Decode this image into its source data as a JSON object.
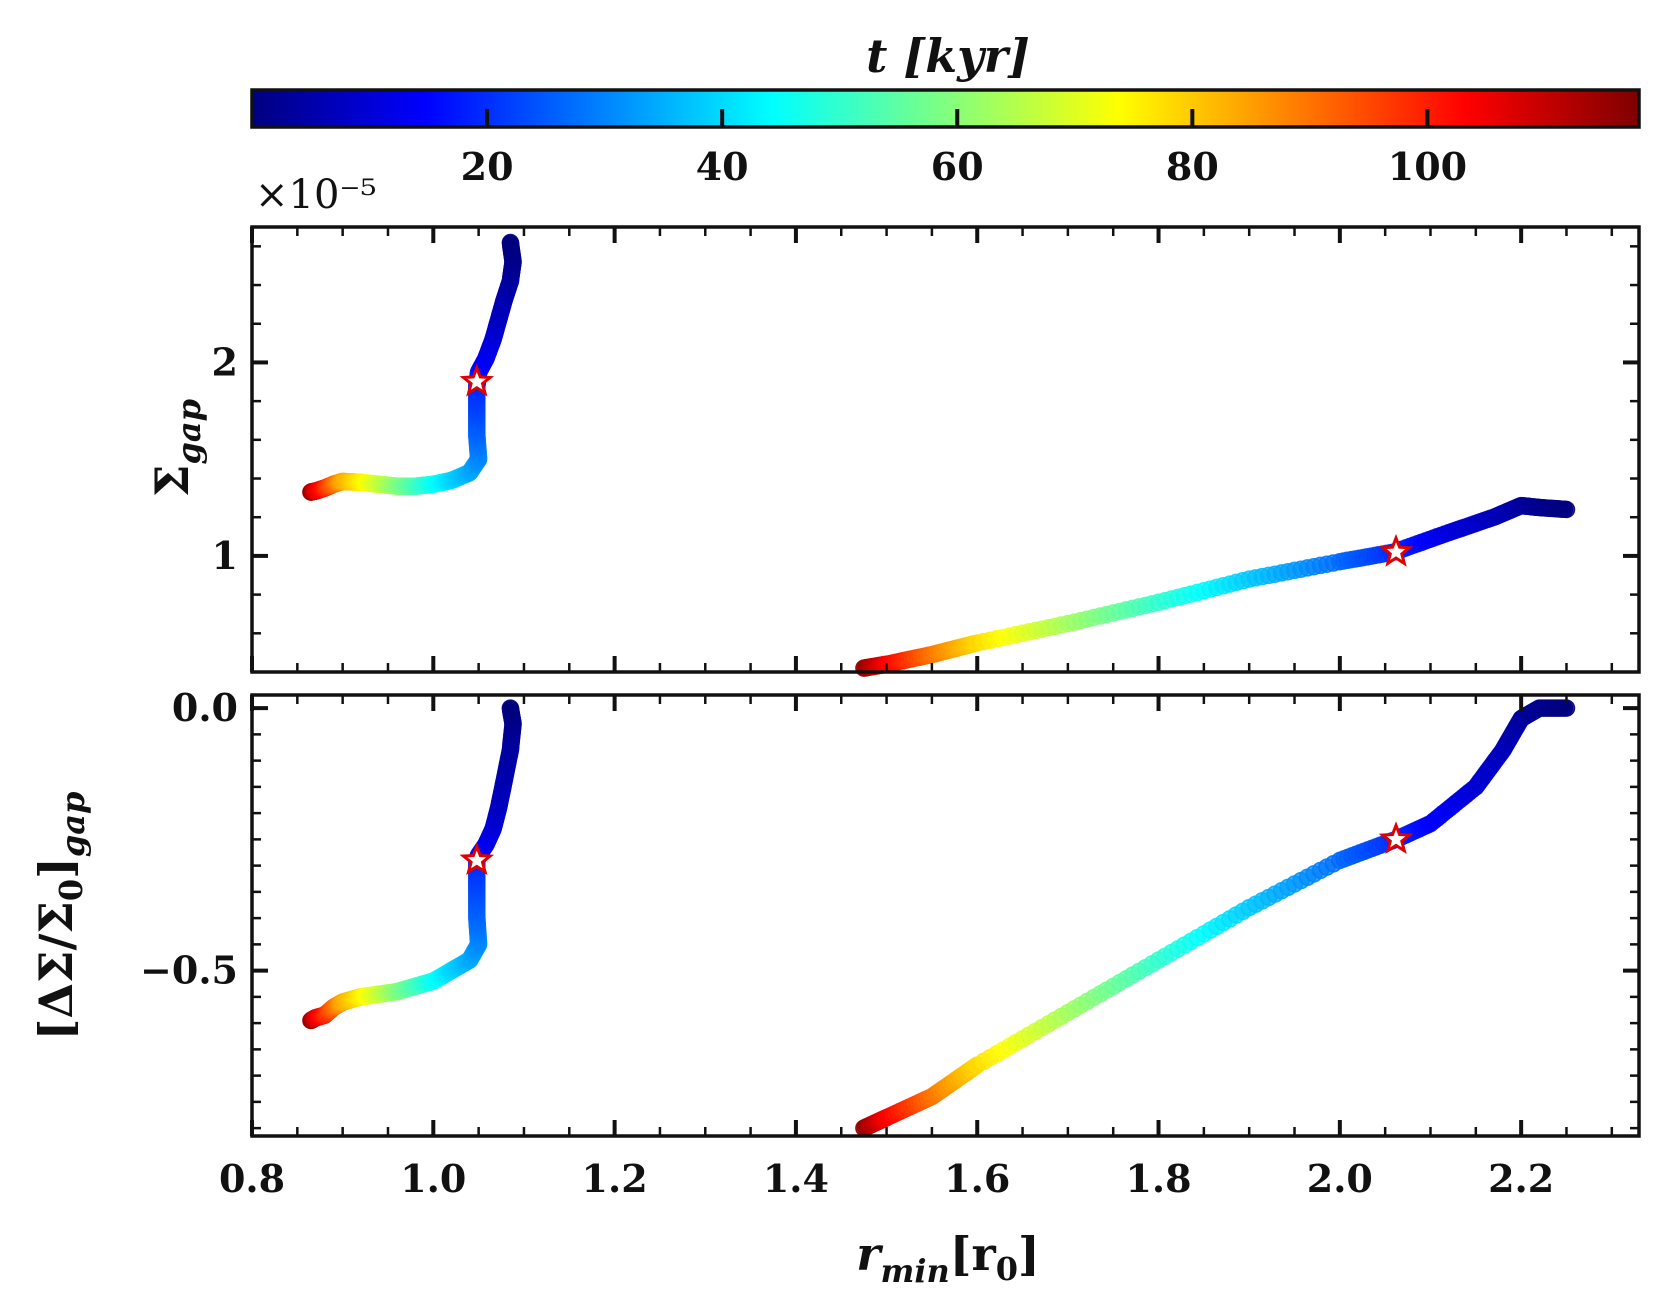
{
  "chart_data": {
    "type": "scatter",
    "colorbar": {
      "label": "t [kyr]",
      "range": [
        0,
        118
      ],
      "ticks": [
        20,
        40,
        60,
        80,
        100
      ],
      "tick_labels": [
        "20",
        "40",
        "60",
        "80",
        "100"
      ],
      "colormap": [
        "#00007f",
        "#0000ff",
        "#0080ff",
        "#00ffff",
        "#80ff80",
        "#ffff00",
        "#ff8000",
        "#ff0000",
        "#7f0000"
      ],
      "placement": "top"
    },
    "shared_x": {
      "label_main": "r",
      "label_sub": "min",
      "label_unit": "[r",
      "label_unit_sub": "0",
      "label_close": "]",
      "range": [
        0.8,
        2.33
      ],
      "ticks": [
        0.8,
        1.0,
        1.2,
        1.4,
        1.6,
        1.8,
        2.0,
        2.2
      ],
      "tick_labels": [
        "0.8",
        "1.0",
        "1.2",
        "1.4",
        "1.6",
        "1.8",
        "2.0",
        "2.2"
      ]
    },
    "panels": [
      {
        "name": "sigma-gap",
        "ylabel_main": "Σ",
        "ylabel_sub": "gap",
        "offset_label": "×10⁻⁵",
        "ylim": [
          0.4,
          2.7
        ],
        "yticks": [
          1,
          2
        ],
        "ytick_labels": [
          "1",
          "2"
        ],
        "series": [
          {
            "name": "inner-track",
            "points": [
              {
                "x": 1.085,
                "y": 2.62,
                "t": 0
              },
              {
                "x": 1.088,
                "y": 2.52,
                "t": 2
              },
              {
                "x": 1.085,
                "y": 2.42,
                "t": 4
              },
              {
                "x": 1.078,
                "y": 2.32,
                "t": 6
              },
              {
                "x": 1.072,
                "y": 2.22,
                "t": 8
              },
              {
                "x": 1.066,
                "y": 2.12,
                "t": 11
              },
              {
                "x": 1.058,
                "y": 2.02,
                "t": 14
              },
              {
                "x": 1.05,
                "y": 1.95,
                "t": 17
              },
              {
                "x": 1.048,
                "y": 1.88,
                "t": 20
              },
              {
                "x": 1.048,
                "y": 1.75,
                "t": 23
              },
              {
                "x": 1.048,
                "y": 1.62,
                "t": 27
              },
              {
                "x": 1.05,
                "y": 1.5,
                "t": 31
              },
              {
                "x": 1.04,
                "y": 1.43,
                "t": 35
              },
              {
                "x": 1.02,
                "y": 1.39,
                "t": 40
              },
              {
                "x": 1.0,
                "y": 1.37,
                "t": 46
              },
              {
                "x": 0.98,
                "y": 1.36,
                "t": 53
              },
              {
                "x": 0.96,
                "y": 1.36,
                "t": 60
              },
              {
                "x": 0.94,
                "y": 1.37,
                "t": 68
              },
              {
                "x": 0.92,
                "y": 1.38,
                "t": 76
              },
              {
                "x": 0.9,
                "y": 1.385,
                "t": 84
              },
              {
                "x": 0.89,
                "y": 1.37,
                "t": 92
              },
              {
                "x": 0.88,
                "y": 1.35,
                "t": 100
              },
              {
                "x": 0.87,
                "y": 1.335,
                "t": 108
              },
              {
                "x": 0.865,
                "y": 1.33,
                "t": 116
              }
            ]
          },
          {
            "name": "outer-track",
            "points": [
              {
                "x": 2.25,
                "y": 1.24,
                "t": 0
              },
              {
                "x": 2.22,
                "y": 1.25,
                "t": 2
              },
              {
                "x": 2.2,
                "y": 1.26,
                "t": 4
              },
              {
                "x": 2.17,
                "y": 1.2,
                "t": 7
              },
              {
                "x": 2.12,
                "y": 1.12,
                "t": 11
              },
              {
                "x": 2.06,
                "y": 1.02,
                "t": 20
              },
              {
                "x": 2.0,
                "y": 0.97,
                "t": 27
              },
              {
                "x": 1.9,
                "y": 0.88,
                "t": 38
              },
              {
                "x": 1.8,
                "y": 0.76,
                "t": 50
              },
              {
                "x": 1.7,
                "y": 0.65,
                "t": 63
              },
              {
                "x": 1.6,
                "y": 0.55,
                "t": 78
              },
              {
                "x": 1.55,
                "y": 0.49,
                "t": 90
              },
              {
                "x": 1.5,
                "y": 0.44,
                "t": 104
              },
              {
                "x": 1.475,
                "y": 0.42,
                "t": 116
              }
            ]
          }
        ],
        "markers": [
          {
            "x": 1.048,
            "y": 1.9,
            "symbol": "star"
          },
          {
            "x": 2.062,
            "y": 1.02,
            "symbol": "star"
          }
        ]
      },
      {
        "name": "delta-sigma-gap",
        "ylabel_main": "[ΔΣ/Σ",
        "ylabel_sub0": "0",
        "ylabel_close": "]",
        "ylabel_sub": "gap",
        "ylim": [
          -0.815,
          0.025
        ],
        "yticks": [
          -0.5,
          0.0
        ],
        "ytick_labels": [
          "−0.5",
          "0.0"
        ],
        "series": [
          {
            "name": "inner-track",
            "points": [
              {
                "x": 1.085,
                "y": 0.0,
                "t": 0
              },
              {
                "x": 1.088,
                "y": -0.03,
                "t": 2
              },
              {
                "x": 1.085,
                "y": -0.08,
                "t": 4
              },
              {
                "x": 1.078,
                "y": -0.14,
                "t": 6
              },
              {
                "x": 1.072,
                "y": -0.19,
                "t": 8
              },
              {
                "x": 1.066,
                "y": -0.23,
                "t": 11
              },
              {
                "x": 1.058,
                "y": -0.26,
                "t": 14
              },
              {
                "x": 1.05,
                "y": -0.28,
                "t": 17
              },
              {
                "x": 1.048,
                "y": -0.29,
                "t": 20
              },
              {
                "x": 1.048,
                "y": -0.34,
                "t": 23
              },
              {
                "x": 1.048,
                "y": -0.4,
                "t": 27
              },
              {
                "x": 1.05,
                "y": -0.45,
                "t": 31
              },
              {
                "x": 1.04,
                "y": -0.48,
                "t": 35
              },
              {
                "x": 1.02,
                "y": -0.5,
                "t": 40
              },
              {
                "x": 1.0,
                "y": -0.52,
                "t": 46
              },
              {
                "x": 0.98,
                "y": -0.53,
                "t": 53
              },
              {
                "x": 0.96,
                "y": -0.54,
                "t": 60
              },
              {
                "x": 0.94,
                "y": -0.545,
                "t": 68
              },
              {
                "x": 0.92,
                "y": -0.55,
                "t": 76
              },
              {
                "x": 0.9,
                "y": -0.56,
                "t": 84
              },
              {
                "x": 0.89,
                "y": -0.57,
                "t": 92
              },
              {
                "x": 0.88,
                "y": -0.585,
                "t": 100
              },
              {
                "x": 0.87,
                "y": -0.59,
                "t": 108
              },
              {
                "x": 0.865,
                "y": -0.595,
                "t": 116
              }
            ]
          },
          {
            "name": "outer-track",
            "points": [
              {
                "x": 2.25,
                "y": 0.0,
                "t": 0
              },
              {
                "x": 2.22,
                "y": 0.0,
                "t": 2
              },
              {
                "x": 2.2,
                "y": -0.02,
                "t": 4
              },
              {
                "x": 2.18,
                "y": -0.08,
                "t": 7
              },
              {
                "x": 2.15,
                "y": -0.15,
                "t": 10
              },
              {
                "x": 2.1,
                "y": -0.22,
                "t": 15
              },
              {
                "x": 2.062,
                "y": -0.25,
                "t": 20
              },
              {
                "x": 2.0,
                "y": -0.29,
                "t": 27
              },
              {
                "x": 1.9,
                "y": -0.38,
                "t": 38
              },
              {
                "x": 1.8,
                "y": -0.48,
                "t": 50
              },
              {
                "x": 1.7,
                "y": -0.58,
                "t": 63
              },
              {
                "x": 1.6,
                "y": -0.68,
                "t": 78
              },
              {
                "x": 1.55,
                "y": -0.74,
                "t": 90
              },
              {
                "x": 1.5,
                "y": -0.78,
                "t": 104
              },
              {
                "x": 1.475,
                "y": -0.8,
                "t": 116
              }
            ]
          }
        ],
        "markers": [
          {
            "x": 1.048,
            "y": -0.29,
            "symbol": "star"
          },
          {
            "x": 2.062,
            "y": -0.25,
            "symbol": "star"
          }
        ]
      }
    ]
  }
}
